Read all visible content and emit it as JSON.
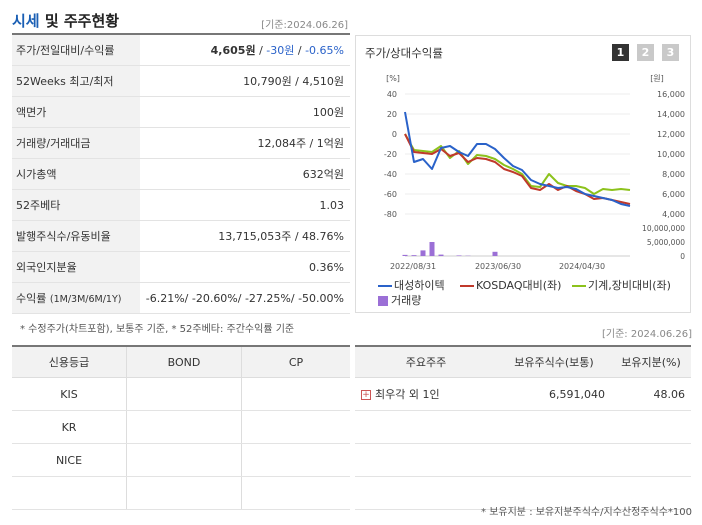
{
  "header": {
    "title_accent": "시세",
    "title_rest": " 및 주주현황",
    "base_date": "[기준:2024.06.26]"
  },
  "price_rows": {
    "r0": {
      "label": "주가/전일대비/수익률",
      "price": "4,605원",
      "sep1": " / ",
      "change": "-30원",
      "sep2": " / ",
      "rate": "-0.65%"
    },
    "r1": {
      "label": "52Weeks 최고/최저",
      "value": "10,790원 / 4,510원"
    },
    "r2": {
      "label": "액면가",
      "value": "100원"
    },
    "r3": {
      "label": "거래량/거래대금",
      "value": "12,084주 / 1억원"
    },
    "r4": {
      "label": "시가총액",
      "value": "632억원"
    },
    "r5": {
      "label": "52주베타",
      "value": "1.03"
    },
    "r6": {
      "label": "발행주식수/유동비율",
      "value": "13,715,053주 / 48.76%"
    },
    "r7": {
      "label": "외국인지분율",
      "value": "0.36%"
    },
    "r8": {
      "label": "수익률",
      "label_sub": "(1M/3M/6M/1Y)",
      "value": "-6.21%/ -20.60%/ -27.25%/ -50.00%"
    }
  },
  "note_left": "* 수정주가(차트포함), 보통주 기준, * 52주베타: 주간수익률 기준",
  "chart_panel": {
    "title": "주가/상대수익률",
    "pages": [
      "1",
      "2",
      "3"
    ],
    "active_page": "1",
    "base_date": "[기준: 2024.06.26]",
    "legend": {
      "s1": "대성하이텍",
      "s2": "KOSDAQ대비(좌)",
      "s3": "기계,장비대비(좌)",
      "s4": "거래량"
    },
    "colors": {
      "s1": "#2a62c9",
      "s2": "#c0392b",
      "s3": "#8cc21c",
      "s4": "#9b6fd6"
    }
  },
  "chart_data": {
    "type": "line",
    "left_axis_unit": "[%]",
    "right_axis_unit": "[원]",
    "ylim_left": [
      -80,
      40
    ],
    "left_ticks": [
      "40",
      "20",
      "0",
      "-20",
      "-40",
      "-60",
      "-80"
    ],
    "right_ticks": [
      "16,000",
      "14,000",
      "12,000",
      "10,000",
      "8,000",
      "6,000",
      "4,000"
    ],
    "volume_ticks": [
      "10,000,000",
      "5,000,000",
      "0"
    ],
    "x_labels": [
      "2022/08/31",
      "2023/06/30",
      "2024/04/30"
    ],
    "n_points": 26,
    "series": [
      {
        "name": "대성하이텍",
        "values": [
          22,
          -28,
          -25,
          -35,
          -14,
          -12,
          -18,
          -22,
          -10,
          -10,
          -15,
          -24,
          -32,
          -36,
          -46,
          -50,
          -52,
          -54,
          -53,
          -55,
          -60,
          -62,
          -64,
          -66,
          -70,
          -72
        ]
      },
      {
        "name": "KOSDAQ대비(좌)",
        "values": [
          0,
          -18,
          -19,
          -20,
          -15,
          -22,
          -19,
          -28,
          -24,
          -25,
          -28,
          -35,
          -38,
          -42,
          -54,
          -56,
          -50,
          -56,
          -52,
          -57,
          -60,
          -65,
          -64,
          -66,
          -68,
          -70
        ]
      },
      {
        "name": "기계,장비대비(좌)",
        "values": [
          0,
          -16,
          -17,
          -18,
          -12,
          -24,
          -17,
          -30,
          -21,
          -22,
          -25,
          -31,
          -35,
          -40,
          -52,
          -53,
          -40,
          -49,
          -52,
          -52,
          -54,
          -60,
          -55,
          -56,
          -55,
          -56
        ]
      }
    ],
    "volume": {
      "name": "거래량",
      "values": [
        400000,
        300000,
        2000000,
        5000000,
        500000,
        0,
        200000,
        100000,
        0,
        0,
        1500000,
        0,
        0,
        0,
        0,
        0,
        0,
        0,
        0,
        0,
        0,
        0,
        0,
        0,
        0,
        0
      ]
    }
  },
  "major_holders": {
    "headers": [
      "주요주주",
      "보유주식수(보통)",
      "보유지분(%)"
    ],
    "rows": [
      {
        "name": "최우각 외 1인",
        "shares": "6,591,040",
        "pct": "48.06"
      }
    ]
  },
  "credit_table": {
    "headers": [
      "신용등급",
      "BOND",
      "CP"
    ],
    "rows": [
      "KIS",
      "KR",
      "NICE",
      ""
    ]
  },
  "note_right": "* 보유지분 : 보유지분주식수/지수산정주식수*100"
}
